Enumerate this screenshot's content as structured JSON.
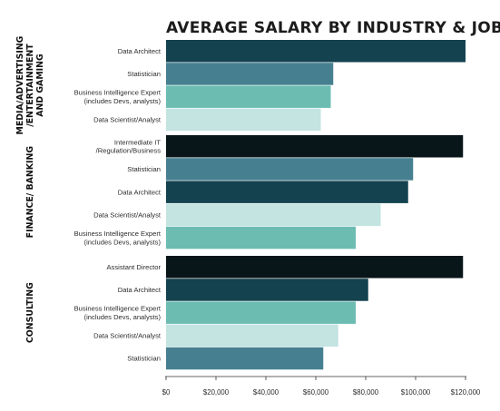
{
  "chart_data": {
    "type": "bar",
    "orientation": "horizontal",
    "title": "AVERAGE SALARY BY INDUSTRY & JOB TYPE",
    "xlabel": "",
    "ylabel": "",
    "xlim": [
      0,
      120000
    ],
    "x_ticks": [
      0,
      20000,
      40000,
      60000,
      80000,
      100000,
      120000
    ],
    "x_tick_labels": [
      "$0",
      "$20,000",
      "$40,000",
      "$60,000",
      "$80,000",
      "$100,000",
      "$120,000"
    ],
    "grid": false,
    "legend": "none",
    "groups": [
      {
        "name": [
          "MEDIA/ADVERTISING",
          "/ENTERTAINMENT",
          "AND GAMING"
        ],
        "bars": [
          {
            "label": [
              "Data Architect"
            ],
            "value": 120000,
            "color": "#14424f"
          },
          {
            "label": [
              "Statistician"
            ],
            "value": 67000,
            "color": "#468090"
          },
          {
            "label": [
              "Business Intelligence Expert",
              "(includes Devs, analysts)"
            ],
            "value": 66000,
            "color": "#6cbcb2"
          },
          {
            "label": [
              "Data Scientist/Analyst"
            ],
            "value": 62000,
            "color": "#c3e4e1"
          }
        ]
      },
      {
        "name": [
          "FINANCE/ BANKING"
        ],
        "bars": [
          {
            "label": [
              "Intermediate IT",
              "/Regulation/Business"
            ],
            "value": 119000,
            "color": "#081519"
          },
          {
            "label": [
              "Statistician"
            ],
            "value": 99000,
            "color": "#468090"
          },
          {
            "label": [
              "Data Architect"
            ],
            "value": 97000,
            "color": "#14424f"
          },
          {
            "label": [
              "Data Scientist/Analyst"
            ],
            "value": 86000,
            "color": "#c3e4e1"
          },
          {
            "label": [
              "Business Intelligence Expert",
              "(includes Devs, analysts)"
            ],
            "value": 76000,
            "color": "#6cbcb2"
          }
        ]
      },
      {
        "name": [
          "CONSULTING"
        ],
        "bars": [
          {
            "label": [
              "Assistant Director"
            ],
            "value": 119000,
            "color": "#081519"
          },
          {
            "label": [
              "Data Architect"
            ],
            "value": 81000,
            "color": "#14424f"
          },
          {
            "label": [
              "Business Intelligence Expert",
              "(includes Devs, analysts)"
            ],
            "value": 76000,
            "color": "#6cbcb2"
          },
          {
            "label": [
              "Data Scientist/Analyst"
            ],
            "value": 69000,
            "color": "#c3e4e1"
          },
          {
            "label": [
              "Statistician"
            ],
            "value": 63000,
            "color": "#468090"
          }
        ]
      }
    ]
  }
}
